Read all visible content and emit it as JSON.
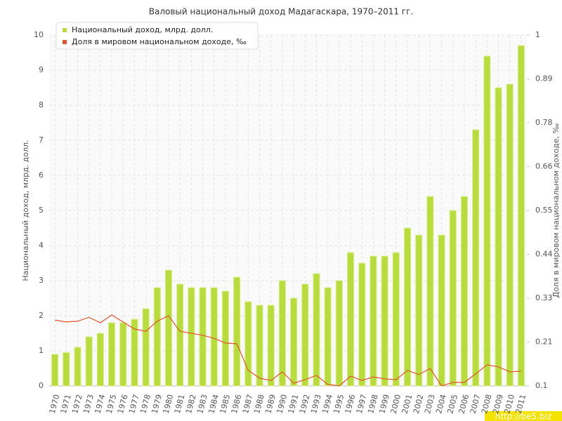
{
  "chart_data": {
    "type": "bar_line",
    "title": "Валовый национальный доход Мадагаскара, 1970–2011 гг.",
    "y_label": "Национальный доход, млрд. долл.",
    "y2_label": "Доля в мировом национальном доходе, ‰",
    "watermark": "http://be5.biz",
    "categories": [
      "1970",
      "1971",
      "1972",
      "1973",
      "1974",
      "1975",
      "1976",
      "1977",
      "1978",
      "1979",
      "1980",
      "1981",
      "1982",
      "1983",
      "1984",
      "1985",
      "1986",
      "1987",
      "1988",
      "1989",
      "1990",
      "1991",
      "1992",
      "1993",
      "1994",
      "1995",
      "1996",
      "1997",
      "1998",
      "1999",
      "2000",
      "2001",
      "2002",
      "2003",
      "2004",
      "2005",
      "2006",
      "2007",
      "2008",
      "2009",
      "2010",
      "2011"
    ],
    "series": [
      {
        "name": "Национальный доход, млрд. долл.",
        "color": "#b8dc3c",
        "type": "bar",
        "values": [
          0.9,
          0.95,
          1.1,
          1.4,
          1.5,
          1.8,
          1.8,
          1.9,
          2.2,
          2.8,
          3.3,
          2.9,
          2.8,
          2.8,
          2.8,
          2.7,
          3.1,
          2.4,
          2.3,
          2.3,
          3.0,
          2.5,
          2.9,
          3.2,
          2.8,
          3.0,
          3.8,
          3.5,
          3.7,
          3.7,
          3.8,
          4.5,
          4.3,
          5.4,
          4.3,
          5.0,
          5.4,
          7.3,
          9.4,
          8.5,
          8.6,
          9.7
        ]
      },
      {
        "name": "Доля в мировом национальном доходе, ‰",
        "color": "#e0562e",
        "type": "line",
        "axis": "y2",
        "values": [
          0.269,
          0.264,
          0.266,
          0.276,
          0.262,
          0.282,
          0.264,
          0.246,
          0.24,
          0.266,
          0.28,
          0.24,
          0.235,
          0.23,
          0.222,
          0.21,
          0.208,
          0.14,
          0.12,
          0.114,
          0.136,
          0.107,
          0.116,
          0.127,
          0.104,
          0.1,
          0.125,
          0.114,
          0.123,
          0.118,
          0.116,
          0.14,
          0.129,
          0.145,
          0.1,
          0.109,
          0.109,
          0.131,
          0.154,
          0.149,
          0.136,
          0.138
        ]
      }
    ],
    "ylim": [
      0,
      10
    ],
    "yticks": [
      0,
      1,
      2,
      3,
      4,
      5,
      6,
      7,
      8,
      9,
      10
    ],
    "y2lim": [
      0.1,
      1
    ],
    "y2ticks": [
      0.1,
      {
        "value": 0.2125,
        "label": "0.21"
      },
      {
        "value": 0.325,
        "label": "0.33"
      },
      {
        "value": 0.4375,
        "label": "0.44"
      },
      0.55,
      {
        "value": 0.6625,
        "label": "0.66"
      },
      {
        "value": 0.775,
        "label": "0.78"
      },
      {
        "value": 0.8875,
        "label": "0.89"
      },
      1
    ],
    "grid": true,
    "legend": "top-left"
  }
}
